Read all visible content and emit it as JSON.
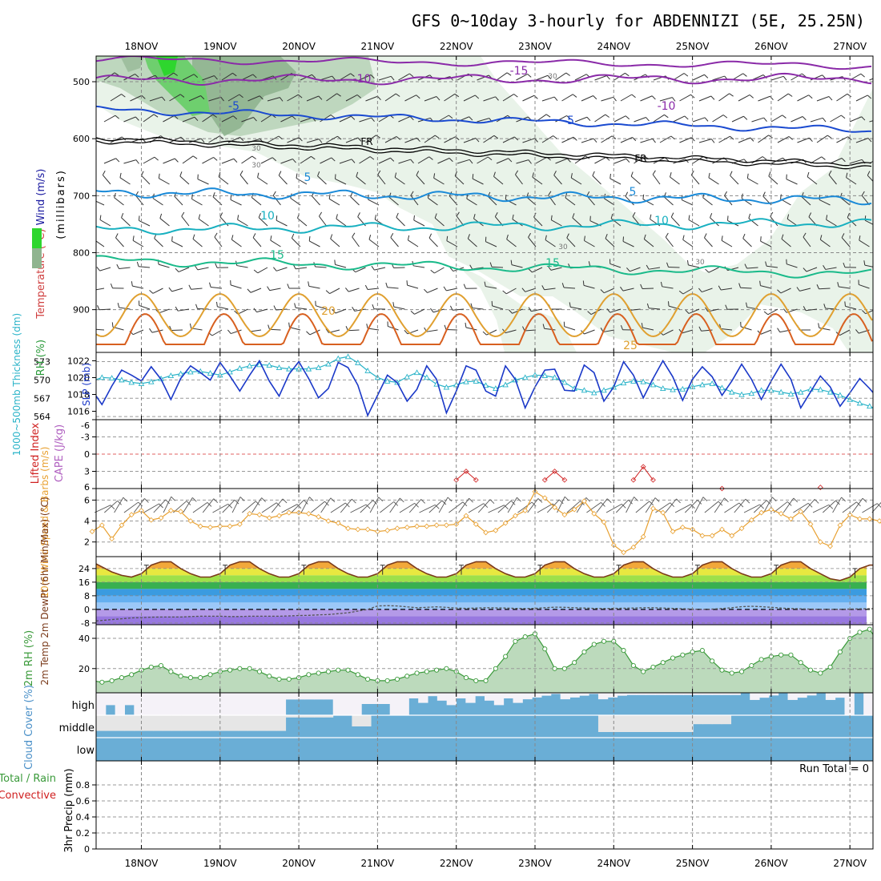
{
  "title": "GFS 0~10day 3-hourly for ABDENNIZI (5E, 25.25N)",
  "dates": [
    "18NOV",
    "19NOV",
    "20NOV",
    "21NOV",
    "22NOV",
    "23NOV",
    "24NOV",
    "25NOV",
    "26NOV",
    "27NOV"
  ],
  "colors": {
    "rh_dark": "#2a9a3a",
    "rh_light": "#d9ecd9",
    "sounding_bg": "#e9f3e9",
    "barb": "#333333",
    "slp": "#1a38c8",
    "thickness": "#29b3c8",
    "lifted": "#d02020",
    "wind10": "#e8a030",
    "temp_top": "#7a3a1a",
    "cloud": "#6aaed6",
    "cloud_clear": "#f5f2f8",
    "rh2m": "#3a9a3a"
  },
  "panels": {
    "sounding": {
      "ylabel_parts": [
        "RH (%)",
        "Temperature (°C)",
        "Wind (m/s)"
      ],
      "ylabel_mb": "(millibars)",
      "yticks": [
        "500",
        "600",
        "700",
        "800",
        "900"
      ]
    },
    "slp": {
      "ylabel_left": "1000~500mb Thickness (dm)",
      "ylabel_right": "SLP (mb)",
      "left_ticks": [
        "573",
        "570",
        "567",
        "564"
      ],
      "right_ticks": [
        "1022",
        "1020",
        "1018",
        "1016"
      ]
    },
    "lifted": {
      "ylabel_a": "Lifted Index",
      "ylabel_b": "CAPE (J/kg)",
      "yticks": [
        "-6",
        "-3",
        "0",
        "3",
        "6"
      ]
    },
    "wind10": {
      "ylabel": "10m Wind Speed & Barbs (m/s)",
      "yticks": [
        "6",
        "4",
        "2"
      ]
    },
    "temp2m": {
      "ylabel": "2m Temp 2m DewPt (6hr Min/Max) (°C)",
      "yticks": [
        "24",
        "16",
        "8",
        "0",
        "-8"
      ]
    },
    "rh2m": {
      "ylabel": "2m RH (%)",
      "yticks": [
        "40",
        "20"
      ]
    },
    "cloud": {
      "ylabel": "Cloud Cover (%)",
      "levels": [
        "high",
        "middle",
        "low"
      ]
    },
    "precip": {
      "ylabel": "3hr Precip (mm)",
      "legend_total": "Total / Rain",
      "legend_conv": "Convective",
      "run_total": "Run Total = 0",
      "yticks": [
        "0.8",
        "0.6",
        "0.4",
        "0.2",
        "0"
      ]
    }
  },
  "contour_labels": {
    "temp": [
      "-15",
      "-10",
      "-10",
      "-5",
      "-5",
      "FR",
      "FR",
      "5",
      "5",
      "10",
      "10",
      "15",
      "15",
      "20",
      "25"
    ],
    "rh": [
      "30",
      "30",
      "30",
      "30",
      "30"
    ]
  },
  "chart_data": [
    {
      "type": "line",
      "name": "SLP (mb)",
      "ylim": [
        1015,
        1023
      ],
      "x_step_hours": 3,
      "values": [
        1018.5,
        1016.8,
        1019.0,
        1020.9,
        1020.3,
        1019.6,
        1021.3,
        1019.8,
        1017.4,
        1019.9,
        1021.4,
        1020.6,
        1019.7,
        1021.8,
        1020.2,
        1018.4,
        1020.3,
        1022.0,
        1019.6,
        1017.8,
        1020.4,
        1021.9,
        1019.9,
        1017.6,
        1018.7,
        1021.8,
        1021.2,
        1019.1,
        1015.5,
        1017.9,
        1020.3,
        1019.4,
        1017.2,
        1018.6,
        1021.4,
        1019.8,
        1015.8,
        1018.4,
        1021.4,
        1020.9,
        1018.4,
        1017.8,
        1021.4,
        1019.8,
        1016.4,
        1018.9,
        1020.9,
        1021.0,
        1018.5,
        1018.4,
        1021.5,
        1020.6,
        1017.2,
        1018.9,
        1021.9,
        1020.3,
        1017.6,
        1019.9,
        1022.0,
        1020.1,
        1017.3,
        1019.8,
        1021.3,
        1020.1,
        1017.9,
        1019.6,
        1021.6,
        1019.8,
        1017.4,
        1019.6,
        1021.6,
        1019.8,
        1016.4,
        1018.3,
        1020.2,
        1018.9,
        1016.6,
        1018.2,
        1019.9,
        1018.7,
        1017.3,
        1019.6
      ]
    },
    {
      "type": "line",
      "name": "1000~500mb Thickness (dm)",
      "ylim": [
        564,
        574
      ],
      "x_step_hours": 3,
      "values": [
        569.8,
        570.4,
        570.3,
        570.0,
        569.6,
        569.4,
        569.7,
        570.2,
        570.7,
        571.0,
        571.3,
        571.4,
        571.1,
        570.8,
        571.3,
        571.9,
        572.3,
        572.5,
        572.4,
        572.0,
        571.8,
        571.8,
        571.8,
        572.0,
        572.6,
        573.5,
        573.8,
        572.8,
        571.5,
        570.4,
        569.8,
        569.6,
        570.5,
        571.2,
        570.4,
        569.3,
        568.8,
        569.2,
        569.7,
        569.8,
        569.1,
        568.6,
        569.2,
        570.0,
        570.4,
        570.8,
        570.7,
        570.4,
        569.6,
        568.6,
        568.3,
        567.9,
        568.3,
        568.8,
        569.5,
        569.8,
        569.7,
        569.2,
        568.6,
        568.4,
        568.5,
        568.9,
        569.2,
        569.4,
        568.7,
        568.0,
        567.6,
        567.8,
        568.3,
        568.3,
        568.0,
        567.7,
        568.0,
        568.5,
        568.4,
        568.0,
        567.5,
        566.8,
        566.2,
        565.7,
        565.0,
        564.2
      ]
    },
    {
      "type": "line",
      "name": "10m Wind Speed (m/s)",
      "ylim": [
        0.5,
        7
      ],
      "x_step_hours": 3,
      "values": [
        3.0,
        3.6,
        2.3,
        3.6,
        4.6,
        5.0,
        4.1,
        4.3,
        5.0,
        4.9,
        4.0,
        3.5,
        3.4,
        3.5,
        3.5,
        3.7,
        4.7,
        4.6,
        4.3,
        4.5,
        4.8,
        4.8,
        4.7,
        4.4,
        4.0,
        3.8,
        3.3,
        3.2,
        3.2,
        3.0,
        3.1,
        3.3,
        3.4,
        3.5,
        3.5,
        3.6,
        3.6,
        3.7,
        4.5,
        3.7,
        2.9,
        3.1,
        3.8,
        4.5,
        5.0,
        6.8,
        6.2,
        5.3,
        4.6,
        5.1,
        5.9,
        4.7,
        3.9,
        1.7,
        1.0,
        1.5,
        2.5,
        5.2,
        4.8,
        3.0,
        3.4,
        3.2,
        2.6,
        2.6,
        3.2,
        2.6,
        3.3,
        4.1,
        4.8,
        5.1,
        4.7,
        4.2,
        4.9,
        3.7,
        2.0,
        1.6,
        3.6,
        4.6,
        4.2,
        4.2,
        4.0,
        2.8
      ]
    },
    {
      "type": "line",
      "name": "Lifted Index",
      "ylim": [
        -6,
        6
      ],
      "x_step_hours": 3,
      "values": [
        null,
        null,
        null,
        null,
        null,
        null,
        null,
        null,
        null,
        null,
        null,
        null,
        null,
        null,
        null,
        null,
        null,
        null,
        null,
        null,
        null,
        null,
        null,
        null,
        null,
        null,
        null,
        null,
        null,
        null,
        null,
        null,
        null,
        null,
        null,
        null,
        null,
        4.5,
        3.0,
        4.5,
        null,
        null,
        null,
        null,
        null,
        null,
        4.5,
        3.0,
        4.5,
        null,
        null,
        null,
        null,
        null,
        null,
        4.5,
        2.2,
        4.5,
        null,
        null,
        null,
        null,
        null,
        null,
        6.0,
        null,
        null,
        null,
        null,
        null,
        null,
        null,
        null,
        null,
        5.8,
        null,
        null,
        null,
        null,
        null,
        null,
        null
      ]
    },
    {
      "type": "area",
      "name": "2m Temp (°C)",
      "ylim": [
        -8,
        30
      ],
      "x_step_hours": 3,
      "values": [
        28,
        25,
        22,
        20,
        19,
        21,
        26,
        28,
        28,
        24,
        21,
        19,
        19,
        21,
        26,
        28,
        28,
        24,
        21,
        19,
        19,
        21,
        26,
        28,
        28,
        24,
        21,
        19,
        19,
        21,
        26,
        28,
        28,
        24,
        21,
        19,
        19,
        21,
        26,
        28,
        28,
        24,
        21,
        19,
        19,
        21,
        26,
        28,
        28,
        24,
        21,
        19,
        19,
        21,
        26,
        28,
        28,
        24,
        21,
        19,
        19,
        21,
        26,
        28,
        28,
        24,
        21,
        19,
        19,
        21,
        26,
        28,
        28,
        24,
        21,
        18,
        17,
        19,
        24,
        26,
        26,
        23,
        20,
        18
      ]
    },
    {
      "type": "line",
      "name": "2m DewPt (°C)",
      "ylim": [
        -8,
        30
      ],
      "x_step_hours": 3,
      "values": [
        -7,
        -6.5,
        -6,
        -5.5,
        -5,
        -4.8,
        -4.6,
        -4.5,
        -4.5,
        -4.5,
        -4.2,
        -4,
        -4,
        -4,
        -4.2,
        -4.2,
        -4,
        -4,
        -4,
        -4,
        -3.8,
        -3.6,
        -3.5,
        -3.2,
        -3,
        -2.5,
        -2,
        -1,
        0,
        2,
        2.2,
        2,
        1.5,
        1,
        1.2,
        1.5,
        1.2,
        0.8,
        0.6,
        0.8,
        1,
        0.9,
        0.8,
        0.6,
        0.5,
        0.6,
        1,
        1.3,
        1.2,
        1,
        0.8,
        0.6,
        0.5,
        0.6,
        0.7,
        0.8,
        1,
        1,
        0.8,
        0.6,
        0.4,
        0.2,
        0,
        0.2,
        0.5,
        1,
        1.6,
        1.8,
        1.6,
        1.2,
        0.8,
        0.5,
        0.3,
        0.2,
        0.1,
        0,
        0.1,
        0.2,
        0.3,
        0.4,
        0.5,
        0.4
      ]
    },
    {
      "type": "area",
      "name": "2m RH (%)",
      "ylim": [
        5,
        48
      ],
      "x_step_hours": 3,
      "values": [
        12,
        11,
        12,
        14,
        16,
        19,
        21,
        22,
        18,
        15,
        14,
        14,
        16,
        18,
        19,
        20,
        20,
        18,
        15,
        13,
        13,
        14,
        16,
        17,
        18,
        19,
        19,
        16,
        13,
        12,
        12,
        13,
        15,
        17,
        18,
        19,
        20,
        18,
        14,
        12,
        12,
        20,
        28,
        38,
        41,
        43,
        33,
        20,
        20,
        24,
        31,
        36,
        38,
        38,
        32,
        22,
        18,
        21,
        24,
        27,
        29,
        31,
        32,
        25,
        19,
        17,
        18,
        22,
        26,
        28,
        29,
        29,
        24,
        19,
        17,
        21,
        31,
        40,
        44,
        46,
        36,
        23
      ]
    },
    {
      "type": "bar",
      "name": "3hr Precip (mm)",
      "ylim": [
        0,
        1
      ],
      "values": []
    }
  ]
}
